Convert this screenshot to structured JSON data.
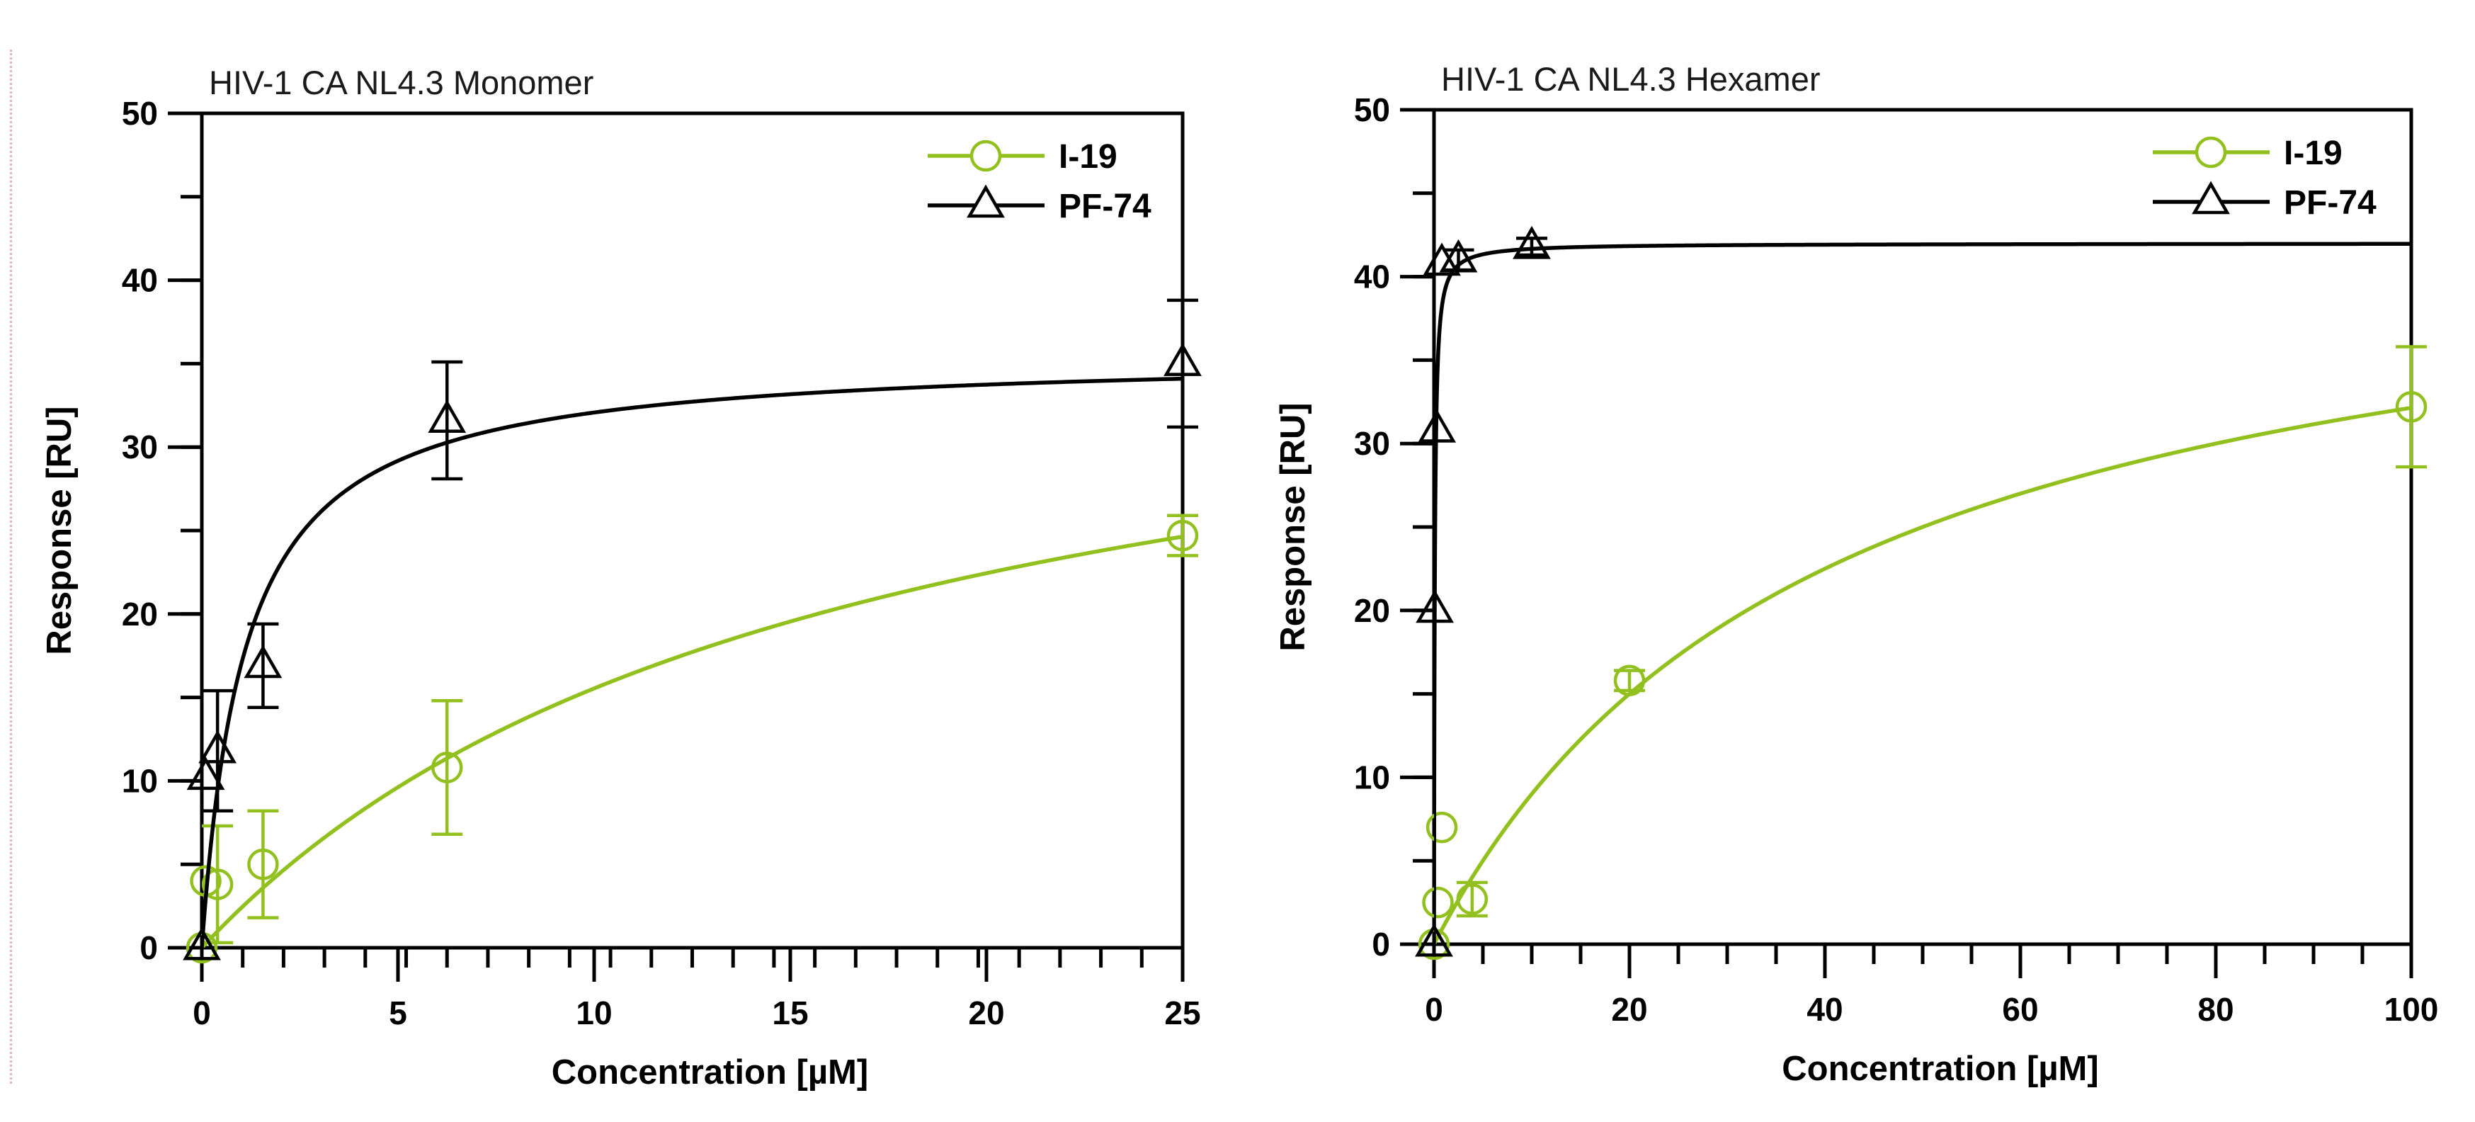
{
  "colors": {
    "I-19": "#92c01f",
    "PF-74": "#000000"
  },
  "chart_data": [
    {
      "type": "scatter",
      "title": "HIV-1 CA NL4.3 Monomer",
      "xlabel": "Concentration [µM]",
      "ylabel": "Response [RU]",
      "xlim": [
        0,
        25
      ],
      "ylim": [
        0,
        50
      ],
      "xticks": [
        0,
        5,
        10,
        15,
        20,
        25
      ],
      "yticks": [
        0,
        10,
        20,
        30,
        40,
        50
      ],
      "grid": false,
      "legend_position": "top-right",
      "series": [
        {
          "name": "I-19",
          "marker": "circle",
          "x": [
            0,
            0.1,
            0.4,
            1.56,
            6.25,
            25
          ],
          "y": [
            0,
            4,
            3.8,
            5,
            10.8,
            24.7
          ],
          "error": [
            0,
            0,
            3.5,
            3.2,
            4.0,
            1.2
          ],
          "fit": {
            "model": "one-site",
            "Bmax": 40.4,
            "Kd": 16
          }
        },
        {
          "name": "PF-74",
          "marker": "triangle",
          "x": [
            0,
            0.1,
            0.4,
            1.56,
            6.25,
            25
          ],
          "y": [
            0,
            10.2,
            11.8,
            16.9,
            31.6,
            35
          ],
          "error": [
            0,
            0,
            3.6,
            2.5,
            3.5,
            3.8
          ],
          "fit": {
            "model": "one-site",
            "Bmax": 35.6,
            "Kd": 1.1
          }
        }
      ]
    },
    {
      "type": "scatter",
      "title": "HIV-1 CA NL4.3 Hexamer",
      "xlabel": "Concentration [µM]",
      "ylabel": "Response [RU]",
      "xlim": [
        0,
        100
      ],
      "ylim": [
        0,
        50
      ],
      "xticks": [
        0,
        20,
        40,
        60,
        80,
        100
      ],
      "yticks": [
        0,
        10,
        20,
        30,
        40,
        50
      ],
      "grid": false,
      "legend_position": "top-right",
      "series": [
        {
          "name": "I-19",
          "marker": "circle",
          "x": [
            0,
            0.4,
            0.8,
            3.9,
            20,
            100
          ],
          "y": [
            0,
            2.5,
            7,
            2.7,
            15.8,
            32.2
          ],
          "error": [
            0,
            0,
            0,
            1.0,
            0.6,
            3.6
          ],
          "fit": {
            "model": "one-site",
            "Bmax": 45,
            "Kd": 40
          }
        },
        {
          "name": "PF-74",
          "marker": "triangle",
          "x": [
            0,
            0.08,
            0.3,
            0.8,
            2.5,
            10
          ],
          "y": [
            0,
            20,
            30.8,
            40.8,
            41,
            41.8
          ],
          "error": [
            0,
            0,
            0,
            0,
            0.6,
            0.5
          ],
          "fit": {
            "model": "one-site",
            "Bmax": 42,
            "Kd": 0.08
          }
        }
      ]
    }
  ]
}
